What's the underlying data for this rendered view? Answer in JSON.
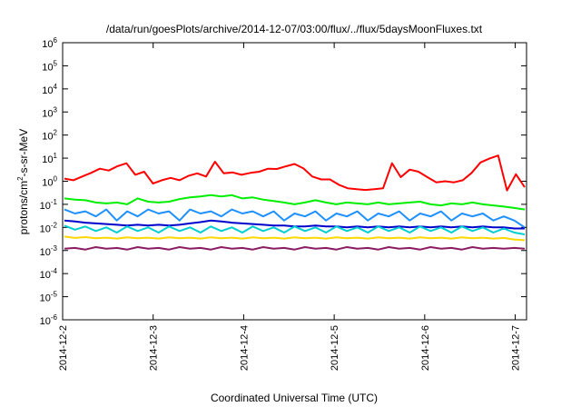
{
  "chart_data": {
    "type": "line",
    "title": "/data/run/goesPlots/archive/2014-12-07/03:00/flux/../flux/5daysMoonFluxes.txt",
    "xlabel": "Coordinated Universal Time (UTC)",
    "ylabel": {
      "base": "protons/cm",
      "sup": "2",
      "rest": "-s-sr-MeV"
    },
    "yscale": "log",
    "ylim_exponent": [
      -6,
      6
    ],
    "y_ticks": [
      {
        "base": "10",
        "exp": "-6"
      },
      {
        "base": "10",
        "exp": "-5"
      },
      {
        "base": "10",
        "exp": "-4"
      },
      {
        "base": "10",
        "exp": "-3"
      },
      {
        "base": "10",
        "exp": "-2"
      },
      {
        "base": "10",
        "exp": "-1"
      },
      {
        "base": "10",
        "exp": "0"
      },
      {
        "base": "10",
        "exp": "1"
      },
      {
        "base": "10",
        "exp": "2"
      },
      {
        "base": "10",
        "exp": "3"
      },
      {
        "base": "10",
        "exp": "4"
      },
      {
        "base": "10",
        "exp": "5"
      },
      {
        "base": "10",
        "exp": "6"
      }
    ],
    "x_ticks": [
      "2014-12-2",
      "2014-12-3",
      "2014-12-4",
      "2014-12-5",
      "2014-12-6",
      "2014-12-7"
    ],
    "xlim": [
      "2014-12-02",
      "2014-12-07T03:00"
    ],
    "grid": false,
    "legend": "none",
    "series": [
      {
        "color": "#ff0000",
        "values": [
          1.3,
          1.1,
          1.6,
          2.3,
          3.5,
          2.9,
          4.5,
          6.0,
          1.9,
          2.6,
          0.8,
          1.1,
          1.4,
          1.1,
          1.7,
          2.2,
          1.6,
          7.0,
          2.2,
          2.4,
          1.9,
          2.3,
          2.6,
          3.5,
          3.4,
          4.4,
          5.6,
          3.6,
          1.6,
          1.2,
          1.2,
          0.7,
          0.5,
          0.45,
          0.42,
          0.45,
          0.5,
          6.0,
          1.5,
          3.2,
          2.6,
          1.5,
          0.9,
          1.0,
          0.9,
          1.1,
          2.3,
          6.5,
          9.5,
          13.0,
          0.4,
          2.0,
          0.55
        ]
      },
      {
        "color": "#00ee00",
        "values": [
          0.18,
          0.16,
          0.15,
          0.12,
          0.11,
          0.12,
          0.1,
          0.18,
          0.13,
          0.12,
          0.13,
          0.17,
          0.2,
          0.22,
          0.25,
          0.22,
          0.25,
          0.18,
          0.2,
          0.16,
          0.14,
          0.12,
          0.1,
          0.12,
          0.15,
          0.12,
          0.1,
          0.12,
          0.11,
          0.1,
          0.12,
          0.1,
          0.11,
          0.12,
          0.13,
          0.1,
          0.09,
          0.11,
          0.1,
          0.12,
          0.1,
          0.09,
          0.08,
          0.07,
          0.06
        ]
      },
      {
        "color": "#1e90ff",
        "values": [
          0.06,
          0.04,
          0.05,
          0.03,
          0.06,
          0.02,
          0.05,
          0.03,
          0.06,
          0.04,
          0.05,
          0.02,
          0.06,
          0.04,
          0.05,
          0.03,
          0.06,
          0.04,
          0.05,
          0.03,
          0.05,
          0.02,
          0.04,
          0.03,
          0.05,
          0.02,
          0.04,
          0.03,
          0.05,
          0.02,
          0.04,
          0.03,
          0.05,
          0.02,
          0.04,
          0.03,
          0.05,
          0.02,
          0.04,
          0.03,
          0.04,
          0.02,
          0.03,
          0.02,
          0.01
        ]
      },
      {
        "color": "#0000cd",
        "values": [
          0.02,
          0.018,
          0.016,
          0.015,
          0.014,
          0.013,
          0.012,
          0.013,
          0.012,
          0.013,
          0.012,
          0.013,
          0.015,
          0.017,
          0.02,
          0.018,
          0.016,
          0.015,
          0.014,
          0.013,
          0.012,
          0.012,
          0.011,
          0.011,
          0.012,
          0.011,
          0.011,
          0.01,
          0.011,
          0.01,
          0.011,
          0.01,
          0.011,
          0.01,
          0.011,
          0.01,
          0.011,
          0.01,
          0.011,
          0.01,
          0.011,
          0.01,
          0.01,
          0.009,
          0.009
        ]
      },
      {
        "color": "#00ced1",
        "values": [
          0.012,
          0.008,
          0.011,
          0.007,
          0.01,
          0.006,
          0.011,
          0.007,
          0.01,
          0.006,
          0.011,
          0.007,
          0.01,
          0.006,
          0.011,
          0.007,
          0.01,
          0.006,
          0.011,
          0.007,
          0.01,
          0.006,
          0.011,
          0.007,
          0.01,
          0.006,
          0.011,
          0.007,
          0.01,
          0.006,
          0.011,
          0.007,
          0.01,
          0.006,
          0.011,
          0.007,
          0.01,
          0.006,
          0.011,
          0.007,
          0.01,
          0.006,
          0.009,
          0.006,
          0.005
        ]
      },
      {
        "color": "#ffd700",
        "values": [
          0.004,
          0.0035,
          0.0038,
          0.0034,
          0.0036,
          0.0033,
          0.0037,
          0.0034,
          0.0036,
          0.0033,
          0.0037,
          0.0034,
          0.0036,
          0.0033,
          0.0037,
          0.0034,
          0.0036,
          0.0033,
          0.0037,
          0.0034,
          0.0036,
          0.0033,
          0.0037,
          0.0034,
          0.0036,
          0.0033,
          0.0037,
          0.0034,
          0.0036,
          0.0033,
          0.0037,
          0.0034,
          0.0036,
          0.0033,
          0.0037,
          0.0034,
          0.0036,
          0.0033,
          0.0037,
          0.0034,
          0.0036,
          0.0033,
          0.0035,
          0.003,
          0.0028
        ]
      },
      {
        "color": "#8b1c62",
        "values": [
          0.0012,
          0.0013,
          0.0011,
          0.0014,
          0.0012,
          0.0013,
          0.0011,
          0.0014,
          0.0012,
          0.0013,
          0.0011,
          0.0014,
          0.0012,
          0.0013,
          0.0011,
          0.0014,
          0.0012,
          0.0013,
          0.0011,
          0.0014,
          0.0012,
          0.0013,
          0.0011,
          0.0014,
          0.0012,
          0.0013,
          0.0011,
          0.0014,
          0.0012,
          0.0013,
          0.0011,
          0.0014,
          0.0012,
          0.0013,
          0.0011,
          0.0014,
          0.0012,
          0.0013,
          0.0011,
          0.0014,
          0.0012,
          0.0013,
          0.0012,
          0.0013,
          0.0012
        ]
      }
    ]
  }
}
